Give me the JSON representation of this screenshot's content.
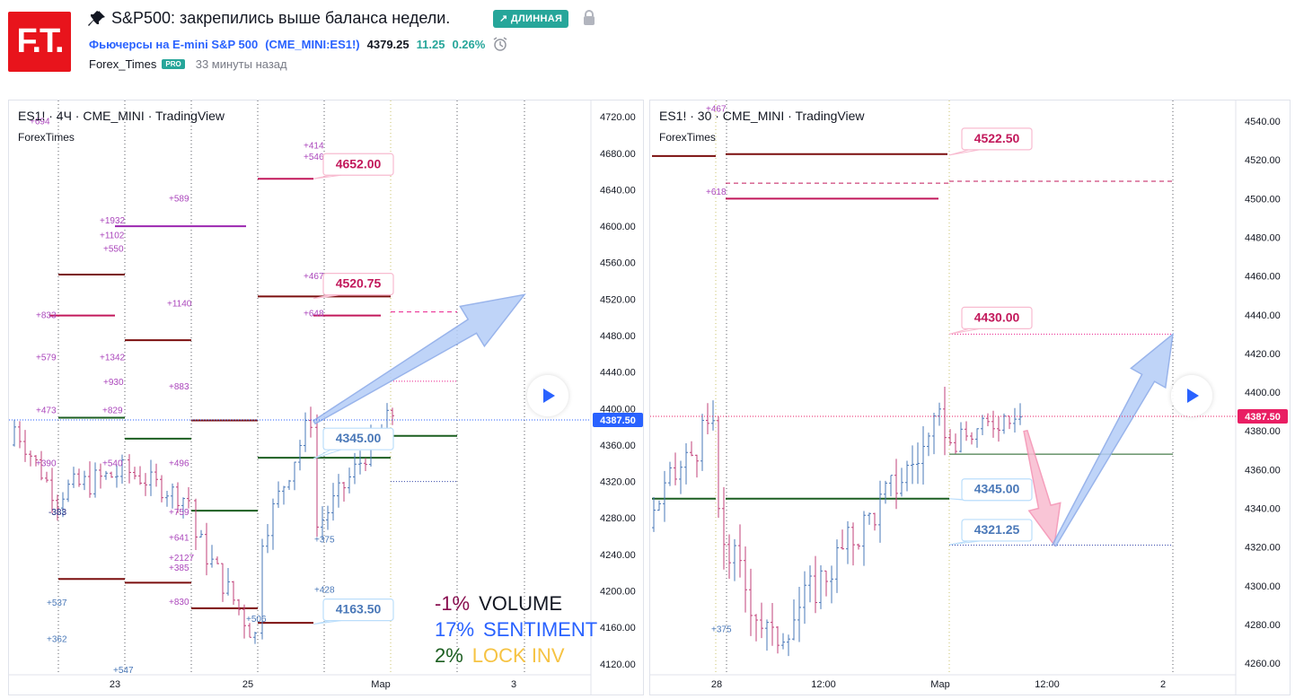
{
  "header": {
    "logo_text": "F.T.",
    "title": "S&P500: закрепились выше баланса недели.",
    "badge": "↗ ДЛИННАЯ",
    "symbol_name": "Фьючерсы на E-mini S&P 500",
    "symbol_code": "(CME_MINI:ES1!)",
    "price": "4379.25",
    "change": "11.25",
    "change_pct": "0.26%",
    "author": "Forex_Times",
    "author_badge": "PRO",
    "published": "33 минуты назад",
    "colors": {
      "brand": "#e8141c",
      "accent_green": "#26a69a",
      "link_blue": "#2962ff"
    }
  },
  "chart_data": [
    {
      "type": "candlestick",
      "title": "ES1! · 4Ч · CME_MINI · TradingView",
      "subtitle": "ForexTimes",
      "y_ticks": [
        4720,
        4680,
        4640,
        4600,
        4560,
        4520,
        4480,
        4440,
        4400,
        4360,
        4320,
        4280,
        4240,
        4200,
        4160,
        4120
      ],
      "ylim": [
        4108,
        4730
      ],
      "x_labels": [
        "23",
        "25",
        "Мар",
        "3"
      ],
      "last_price": "4387.50",
      "callouts": [
        "4652.00",
        "4520.75",
        "4345.00",
        "4163.50"
      ],
      "levels_dark_red": [
        4547,
        4475,
        4387,
        4213,
        4201,
        4177,
        4165,
        4523
      ],
      "levels_magenta": [
        4652,
        4600,
        4402,
        4502
      ],
      "levels_green": [
        4390,
        4356,
        4287,
        4377,
        4360
      ],
      "profile_labels": [
        "+694",
        "+414",
        "+546",
        "+589",
        "+1932",
        "+1102",
        "+550",
        "+1140",
        "+467",
        "+833",
        "+648",
        "+579",
        "+1342",
        "+930",
        "+883",
        "+473",
        "+829",
        "+390",
        "+540",
        "+496",
        "-383",
        "+759",
        "+641",
        "+2127",
        "+385",
        "+830",
        "+375",
        "+428",
        "+537",
        "+506",
        "+362",
        "+547"
      ],
      "stats": [
        {
          "value": "-1%",
          "label": "VOLUME",
          "color_value": "#880e4f",
          "color_label": "#131722"
        },
        {
          "value": "17%",
          "label": "SENTIMENT",
          "color_value": "#2962ff",
          "color_label": "#2962ff"
        },
        {
          "value": "2%",
          "label": "LOCK INV",
          "color_value": "#1b5e20",
          "color_label": "#f6c343"
        }
      ],
      "arrow": {
        "from_price": 4390,
        "to_price": 4525
      }
    },
    {
      "type": "candlestick",
      "title": "ES1! · 30 · CME_MINI · TradingView",
      "subtitle": "ForexTimes",
      "y_ticks": [
        4540,
        4520,
        4500,
        4480,
        4460,
        4440,
        4420,
        4400,
        4380,
        4360,
        4340,
        4320,
        4300,
        4280,
        4260
      ],
      "ylim": [
        4254,
        4547
      ],
      "x_labels": [
        "28",
        "12:00",
        "Мар",
        "12:00",
        "2"
      ],
      "last_price": "4387.50",
      "callouts": [
        "4522.50",
        "4430.00",
        "4345.00",
        "4321.25"
      ],
      "levels_dark_red": [
        4522
      ],
      "levels_magenta": [
        4508,
        4501,
        4430
      ],
      "levels_green": [
        4368,
        4345,
        4321
      ],
      "profile_labels": [
        "+467",
        "+618",
        "+375"
      ],
      "arrows": [
        {
          "color": "pink",
          "from_price": 4378,
          "to_price": 4321
        },
        {
          "color": "blue",
          "from_price": 4321,
          "to_price": 4430
        }
      ]
    }
  ]
}
